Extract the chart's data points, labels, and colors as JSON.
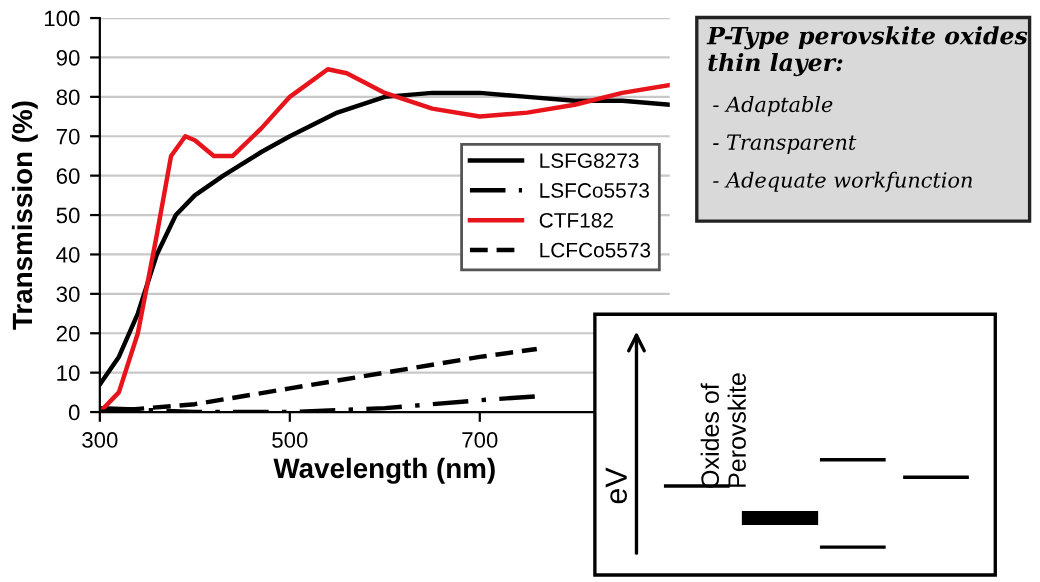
{
  "chart_data": {
    "type": "line",
    "xlabel": "Wavelength (nm)",
    "ylabel": "Transmission (%)",
    "xlim": [
      300,
      900
    ],
    "xticks": [
      300,
      500,
      700
    ],
    "ylim": [
      0,
      100
    ],
    "yticks": [
      0,
      10,
      20,
      30,
      40,
      50,
      60,
      70,
      80,
      90,
      100
    ],
    "grid": "y",
    "legend": "right",
    "series": [
      {
        "name": "LSFG8273",
        "color": "#000000",
        "line_style": "solid",
        "x": [
          300,
          320,
          340,
          360,
          380,
          400,
          430,
          470,
          500,
          550,
          600,
          650,
          700,
          750,
          800,
          850,
          900
        ],
        "values": [
          7,
          14,
          25,
          40,
          50,
          55,
          60,
          66,
          70,
          76,
          80,
          81,
          81,
          80,
          79,
          79,
          78
        ]
      },
      {
        "name": "LSFCo5573",
        "color": "#000000",
        "line_style": "dashdot",
        "x": [
          300,
          400,
          500,
          600,
          700,
          760
        ],
        "values": [
          1,
          0,
          0,
          1,
          3,
          4
        ]
      },
      {
        "name": "CTF182",
        "color": "#e8141c",
        "line_style": "solid",
        "x": [
          300,
          320,
          340,
          360,
          375,
          390,
          400,
          420,
          440,
          470,
          500,
          540,
          560,
          600,
          650,
          700,
          750,
          800,
          850,
          900
        ],
        "values": [
          0,
          5,
          20,
          45,
          65,
          70,
          69,
          65,
          65,
          72,
          80,
          87,
          86,
          81,
          77,
          75,
          76,
          78,
          81,
          83
        ]
      },
      {
        "name": "LCFCo5573",
        "color": "#000000",
        "line_style": "dashed",
        "x": [
          300,
          400,
          500,
          600,
          700,
          760
        ],
        "values": [
          0,
          2,
          6,
          10,
          14,
          16
        ]
      }
    ],
    "annotations": [
      "P-Type perovskite oxides thin layer:",
      "- Adaptable",
      "- Transparent",
      "- Adequate workfunction",
      "eV",
      "Oxides of Perovskite"
    ]
  }
}
